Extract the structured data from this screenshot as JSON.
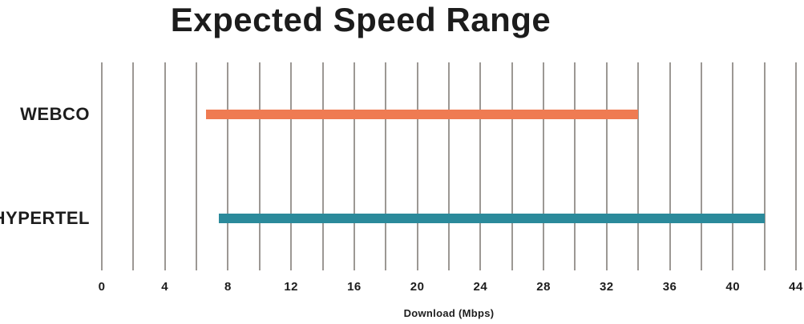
{
  "title": "Expected Speed Range",
  "colors": {
    "background": "#ffffff",
    "text": "#1d1d1d",
    "gridline": "#9c9894",
    "webco_bar": "#ef7b52",
    "hypertel_bar": "#2b8a9b"
  },
  "chart_data": {
    "type": "bar",
    "subtype": "horizontal-range-bar",
    "title": "Expected Speed Range",
    "xlabel": "Download (Mbps)",
    "ylabel": "",
    "xlim": [
      0,
      44
    ],
    "grid_step": 2,
    "grid": "vertical",
    "legend": "none",
    "xticks": [
      0,
      4,
      8,
      12,
      16,
      20,
      24,
      28,
      32,
      36,
      40,
      44
    ],
    "categories": [
      "WEBCO",
      "HYPERTEL"
    ],
    "series": [
      {
        "name": "WEBCO",
        "range": [
          6.6,
          34
        ],
        "color": "#ef7b52"
      },
      {
        "name": "HYPERTEL",
        "range": [
          7.4,
          42
        ],
        "color": "#2b8a9b"
      }
    ]
  }
}
